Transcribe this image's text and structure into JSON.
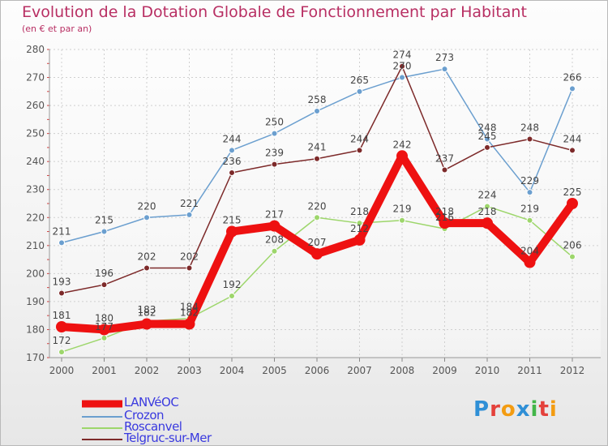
{
  "header": {
    "title": "Evolution de la Dotation Globale de Fonctionnement par Habitant",
    "subtitle": "(en € et par an)"
  },
  "logo": {
    "text": "Proxiti",
    "letters": [
      {
        "ch": "P",
        "color": "#2f8fd6"
      },
      {
        "ch": "r",
        "color": "#e4413b"
      },
      {
        "ch": "o",
        "color": "#f39c12"
      },
      {
        "ch": "x",
        "color": "#2f8fd6"
      },
      {
        "ch": "i",
        "color": "#43b649"
      },
      {
        "ch": "t",
        "color": "#e4413b"
      },
      {
        "ch": "i",
        "color": "#f39c12"
      }
    ]
  },
  "chart_data": {
    "type": "line",
    "title": "Evolution de la Dotation Globale de Fonctionnement par Habitant",
    "subtitle": "(en € et par an)",
    "xlabel": "",
    "ylabel": "",
    "ylim": [
      170,
      280
    ],
    "yticks": [
      170,
      180,
      190,
      200,
      210,
      220,
      230,
      240,
      250,
      260,
      270,
      280
    ],
    "categories": [
      "2000",
      "2001",
      "2002",
      "2003",
      "2004",
      "2005",
      "2006",
      "2007",
      "2008",
      "2009",
      "2010",
      "2011",
      "2012"
    ],
    "legend_position": "bottom-left",
    "series": [
      {
        "name": "LANVéOC",
        "color": "#ee1111",
        "values": [
          181,
          180,
          182,
          182,
          215,
          217,
          207,
          212,
          242,
          218,
          218,
          204,
          225
        ]
      },
      {
        "name": "Crozon",
        "color": "#6b9fcf",
        "values": [
          211,
          215,
          220,
          221,
          244,
          250,
          258,
          265,
          270,
          273,
          248,
          229,
          266
        ]
      },
      {
        "name": "Roscanvel",
        "color": "#9dd66b",
        "values": [
          172,
          177,
          183,
          184,
          192,
          208,
          220,
          218,
          219,
          216,
          224,
          219,
          206
        ]
      },
      {
        "name": "Telgruc-sur-Mer",
        "color": "#7d2a2a",
        "values": [
          193,
          196,
          202,
          202,
          236,
          239,
          241,
          244,
          274,
          237,
          245,
          248,
          244
        ]
      }
    ]
  }
}
